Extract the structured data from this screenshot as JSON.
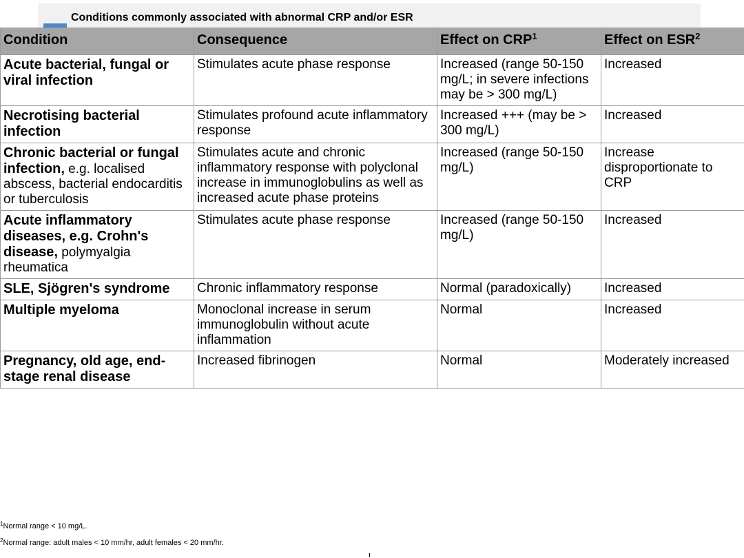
{
  "caption": "Conditions commonly associated with abnormal CRP and/or ESR",
  "headers": {
    "condition": "Condition",
    "consequence": "Consequence",
    "crp": "Effect on CRP",
    "crp_sup": "1",
    "esr": "Effect on ESR",
    "esr_sup": "2"
  },
  "rows": [
    {
      "condition_bold": "Acute bacterial, fungal or viral infection",
      "condition_rest": "",
      "consequence": "Stimulates acute phase response",
      "crp": "Increased (range 50-150 mg/L; in severe infections may be > 300 mg/L)",
      "esr": "Increased"
    },
    {
      "condition_bold": "Necrotising bacterial infection",
      "condition_rest": "",
      "consequence": "Stimulates profound acute inflammatory response",
      "crp": "Increased +++ (may be > 300 mg/L)",
      "esr": "Increased"
    },
    {
      "condition_bold": "Chronic bacterial or fungal infection,",
      "condition_rest": " e.g. localised abscess, bacterial endocarditis or tuberculosis",
      "consequence": "Stimulates acute and chronic inflammatory response with polyclonal increase in immunoglobulins as well as increased acute phase proteins",
      "crp": "Increased (range 50-150 mg/L)",
      "esr": "Increase disproportionate to CRP"
    },
    {
      "condition_bold": "Acute inflammatory diseases, e.g. Crohn's disease,",
      "condition_rest": " polymyalgia rheumatica",
      "consequence": "Stimulates acute phase response",
      "crp": "Increased (range 50-150 mg/L)",
      "esr": "Increased"
    },
    {
      "condition_bold": "SLE, Sjögren's syndrome",
      "condition_rest": "",
      "consequence": "Chronic inflammatory response",
      "crp": "Normal (paradoxically)",
      "esr": "Increased"
    },
    {
      "condition_bold": "Multiple myeloma",
      "condition_rest": "",
      "consequence": "Monoclonal increase in serum immunoglobulin without acute inflammation",
      "crp": "Normal",
      "esr": "Increased"
    },
    {
      "condition_bold": "Pregnancy, old age, end-stage renal disease",
      "condition_rest": "",
      "consequence": "Increased fibrinogen",
      "crp": "Normal",
      "esr": "Moderately increased"
    }
  ],
  "footnotes": [
    {
      "sup": "1",
      "text": "Normal range < 10 mg/L."
    },
    {
      "sup": "2",
      "text": "Normal range: adult males < 10 mm/hr, adult females < 20 mm/hr."
    }
  ],
  "colors": {
    "header_bg": "#a6a6a6",
    "caption_bg": "#f1f1f1",
    "marker": "#4f88c6",
    "border": "#9a9a9a"
  }
}
